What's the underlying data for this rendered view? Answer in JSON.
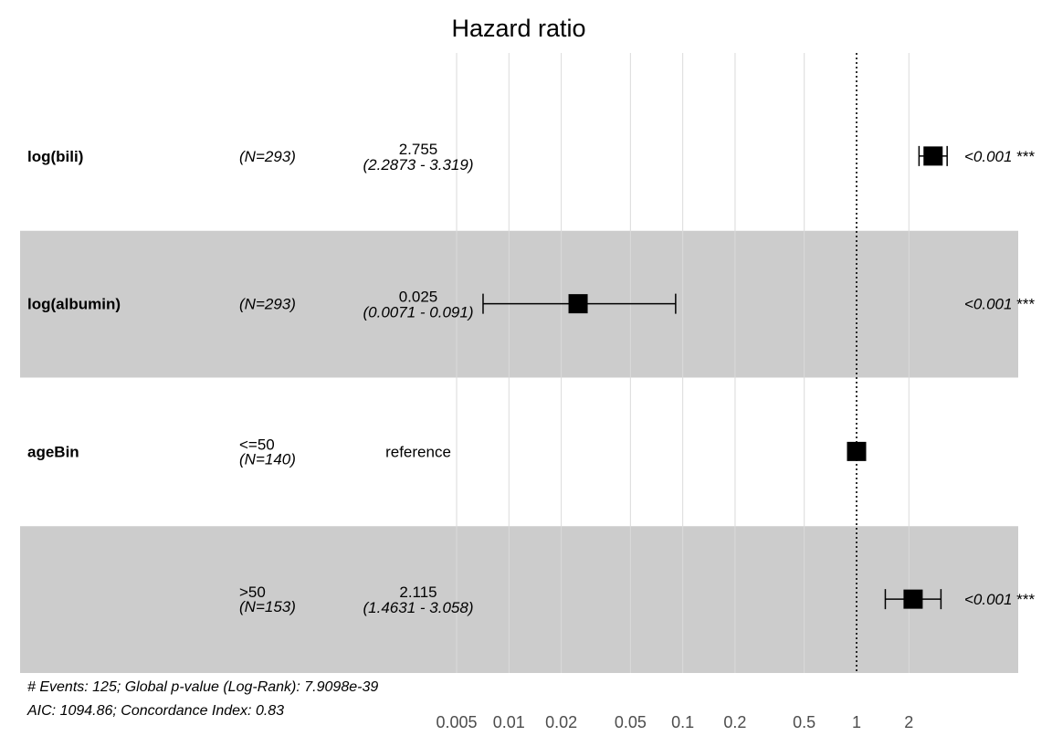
{
  "chart_data": {
    "type": "forest",
    "title": "Hazard ratio",
    "x_scale": "log",
    "xlim": [
      0.005,
      3.3
    ],
    "x_ticks": [
      0.005,
      0.01,
      0.02,
      0.05,
      0.1,
      0.2,
      0.5,
      1,
      2
    ],
    "x_tick_labels": [
      "0.005",
      "0.01",
      "0.02",
      "0.05",
      "0.1",
      "0.2",
      "0.5",
      "1",
      "2"
    ],
    "reference_line": 1,
    "rows": [
      {
        "variable": "log(bili)",
        "level": "",
        "n": "(N=293)",
        "hr": 2.755,
        "lo": 2.2873,
        "hi": 3.319,
        "estimate_text": "2.755",
        "ci_text": "(2.2873 - 3.319)",
        "p_text": "<0.001",
        "stars": "***",
        "shaded": false
      },
      {
        "variable": "log(albumin)",
        "level": "",
        "n": "(N=293)",
        "hr": 0.025,
        "lo": 0.0071,
        "hi": 0.091,
        "estimate_text": "0.025",
        "ci_text": "(0.0071 - 0.091)",
        "p_text": "<0.001",
        "stars": "***",
        "shaded": true
      },
      {
        "variable": "ageBin",
        "level": "<=50",
        "n": "(N=140)",
        "hr": 1,
        "lo": null,
        "hi": null,
        "estimate_text": "reference",
        "ci_text": "",
        "p_text": "",
        "stars": "",
        "shaded": false
      },
      {
        "variable": "",
        "level": ">50",
        "n": "(N=153)",
        "hr": 2.115,
        "lo": 1.4631,
        "hi": 3.058,
        "estimate_text": "2.115",
        "ci_text": "(1.4631 - 3.058)",
        "p_text": "<0.001",
        "stars": "***",
        "shaded": true
      }
    ],
    "footnote": [
      "# Events: 125; Global p-value (Log-Rank): 7.9098e-39",
      "AIC: 1094.86; Concordance Index: 0.83"
    ]
  }
}
